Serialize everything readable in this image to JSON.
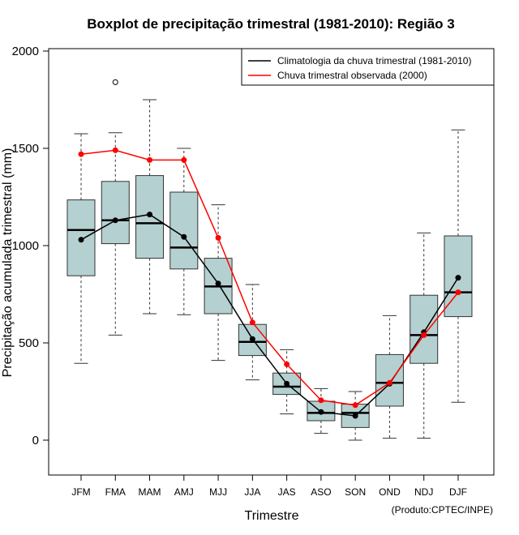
{
  "chart_data": {
    "type": "boxplot",
    "title": "Boxplot de precipitação trimestral (1981-2010): Região 3",
    "xlabel": "Trimestre",
    "ylabel": "Precipitação acumulada trimestral (mm)",
    "ylim": [
      -180,
      2020
    ],
    "yticks": [
      0,
      500,
      1000,
      1500,
      2000
    ],
    "categories": [
      "JFM",
      "FMA",
      "MAM",
      "AMJ",
      "MJJ",
      "JJA",
      "JAS",
      "ASO",
      "SON",
      "OND",
      "NDJ",
      "DJF"
    ],
    "boxes": [
      {
        "min": 395,
        "q1": 845,
        "median": 1080,
        "q3": 1235,
        "max": 1575,
        "outliers": []
      },
      {
        "min": 540,
        "q1": 1010,
        "median": 1130,
        "q3": 1330,
        "max": 1580,
        "outliers": [
          1840
        ]
      },
      {
        "min": 650,
        "q1": 935,
        "median": 1115,
        "q3": 1360,
        "max": 1750,
        "outliers": []
      },
      {
        "min": 645,
        "q1": 880,
        "median": 990,
        "q3": 1275,
        "max": 1500,
        "outliers": []
      },
      {
        "min": 410,
        "q1": 650,
        "median": 790,
        "q3": 935,
        "max": 1210,
        "outliers": []
      },
      {
        "min": 310,
        "q1": 435,
        "median": 505,
        "q3": 595,
        "max": 800,
        "outliers": []
      },
      {
        "min": 135,
        "q1": 235,
        "median": 275,
        "q3": 345,
        "max": 465,
        "outliers": []
      },
      {
        "min": 35,
        "q1": 100,
        "median": 140,
        "q3": 200,
        "max": 265,
        "outliers": []
      },
      {
        "min": 0,
        "q1": 65,
        "median": 140,
        "q3": 185,
        "max": 250,
        "outliers": []
      },
      {
        "min": 10,
        "q1": 175,
        "median": 295,
        "q3": 440,
        "max": 640,
        "outliers": []
      },
      {
        "min": 10,
        "q1": 395,
        "median": 540,
        "q3": 745,
        "max": 1065,
        "outliers": []
      },
      {
        "min": 195,
        "q1": 635,
        "median": 760,
        "q3": 1050,
        "max": 1595,
        "outliers": []
      }
    ],
    "series": [
      {
        "name": "Climatologia da chuva trimestral (1981-2010)",
        "color": "#000000",
        "values": [
          1030,
          1130,
          1160,
          1045,
          805,
          520,
          290,
          145,
          125,
          290,
          555,
          835
        ]
      },
      {
        "name": "Chuva trimestral observada (2000)",
        "color": "#ff0000",
        "values": [
          1470,
          1490,
          1440,
          1440,
          1040,
          605,
          390,
          205,
          180,
          295,
          540,
          760
        ]
      }
    ],
    "box_fill": "#b5d0d0",
    "legend_position": "top-right",
    "credit": "(Produto:CPTEC/INPE)"
  }
}
